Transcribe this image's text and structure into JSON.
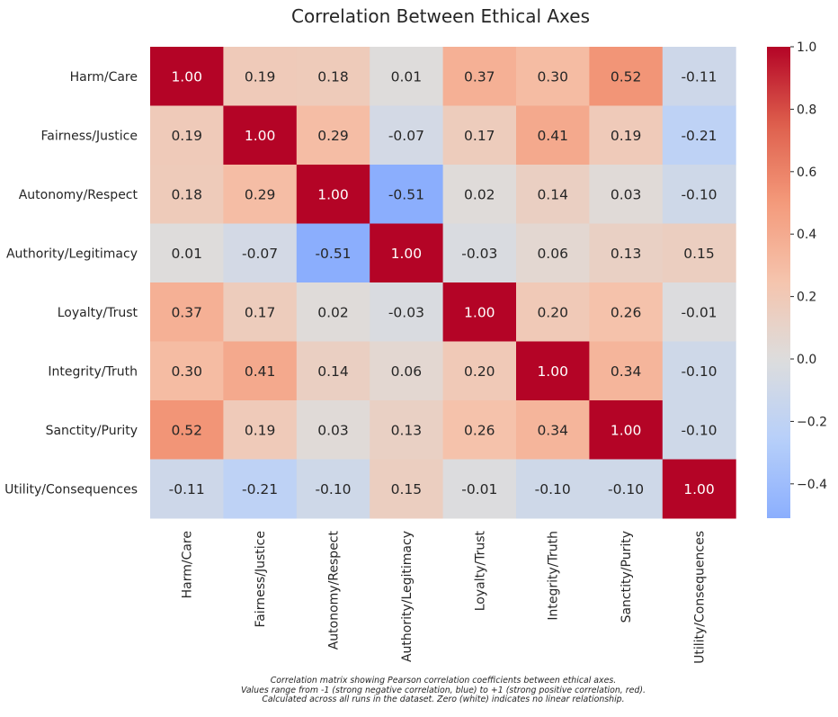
{
  "chart_data": {
    "type": "heatmap",
    "title": "Correlation Between Ethical Axes",
    "row_labels": [
      "Harm/Care",
      "Fairness/Justice",
      "Autonomy/Respect",
      "Authority/Legitimacy",
      "Loyalty/Trust",
      "Integrity/Truth",
      "Sanctity/Purity",
      "Utility/Consequences"
    ],
    "col_labels": [
      "Harm/Care",
      "Fairness/Justice",
      "Autonomy/Respect",
      "Authority/Legitimacy",
      "Loyalty/Trust",
      "Integrity/Truth",
      "Sanctity/Purity",
      "Utility/Consequences"
    ],
    "values": [
      [
        1.0,
        0.19,
        0.18,
        0.01,
        0.37,
        0.3,
        0.52,
        -0.11
      ],
      [
        0.19,
        1.0,
        0.29,
        -0.07,
        0.17,
        0.41,
        0.19,
        -0.21
      ],
      [
        0.18,
        0.29,
        1.0,
        -0.51,
        0.02,
        0.14,
        0.03,
        -0.1
      ],
      [
        0.01,
        -0.07,
        -0.51,
        1.0,
        -0.03,
        0.06,
        0.13,
        0.15
      ],
      [
        0.37,
        0.17,
        0.02,
        -0.03,
        1.0,
        0.2,
        0.26,
        -0.01
      ],
      [
        0.3,
        0.41,
        0.14,
        0.06,
        0.2,
        1.0,
        0.34,
        -0.1
      ],
      [
        0.52,
        0.19,
        0.03,
        0.13,
        0.26,
        0.34,
        1.0,
        -0.1
      ],
      [
        -0.11,
        -0.21,
        -0.1,
        0.15,
        -0.01,
        -0.1,
        -0.1,
        1.0
      ]
    ],
    "value_format": "2 decimals",
    "colormap": "coolwarm",
    "center": 0,
    "colorbar_range": [
      -0.51,
      1.0
    ],
    "colorbar_ticks": [
      -0.4,
      -0.2,
      0.0,
      0.2,
      0.4,
      0.6,
      0.8,
      1.0
    ],
    "colorbar_tick_labels": [
      "−0.4",
      "−0.2",
      "0.0",
      "0.2",
      "0.4",
      "0.6",
      "0.8",
      "1.0"
    ],
    "colors": {
      "negative_end": "#3b4cc0",
      "center": "#dddddd",
      "positive_end": "#b40426",
      "text_dark": "#262626",
      "text_light": "#ffffff"
    },
    "caption": [
      "Correlation matrix showing Pearson correlation coefficients between ethical axes.",
      "Values range from -1 (strong negative correlation, blue) to +1 (strong positive correlation, red).",
      "Calculated across all runs in the dataset. Zero (white) indicates no linear relationship."
    ]
  }
}
